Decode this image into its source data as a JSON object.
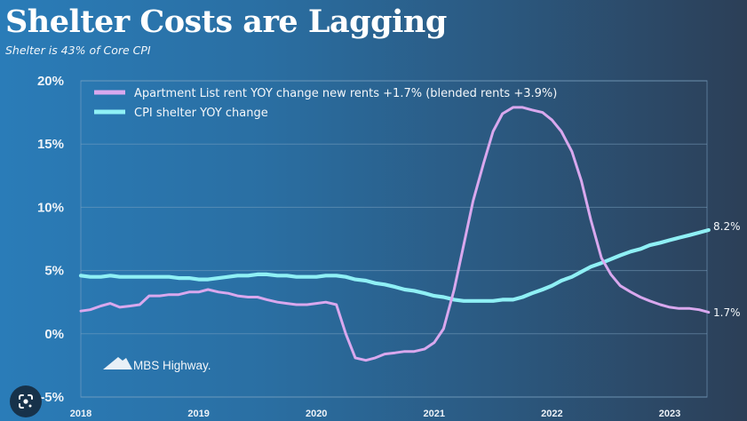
{
  "header": {
    "title": "Shelter Costs are Lagging",
    "subtitle": "Shelter is 43% of Core CPI"
  },
  "logo": {
    "text": "MBS Highway.",
    "icon": "mountain-logo-icon"
  },
  "overlay": {
    "icon": "google-lens-icon"
  },
  "colors": {
    "rent": "#d9a8ee",
    "cpi": "#8ff0f5",
    "grid": "#7fa6c4",
    "text": "#eef3f8"
  },
  "chart_data": {
    "type": "line",
    "title": "Shelter Costs are Lagging",
    "subtitle": "Shelter is 43% of Core CPI",
    "xlabel": "",
    "ylabel": "",
    "xlim": [
      2018,
      2023.33
    ],
    "ylim": [
      -5,
      20
    ],
    "grid": true,
    "legend_position": "top-left",
    "y_ticks": [
      {
        "value": 20,
        "label": "20%"
      },
      {
        "value": 15,
        "label": "15%"
      },
      {
        "value": 10,
        "label": "10%"
      },
      {
        "value": 5,
        "label": "5%"
      },
      {
        "value": 0,
        "label": "0%"
      },
      {
        "value": -5,
        "label": "-5%"
      }
    ],
    "x_ticks": [
      {
        "value": 2018,
        "label": "2018"
      },
      {
        "value": 2019,
        "label": "2019"
      },
      {
        "value": 2020,
        "label": "2020"
      },
      {
        "value": 2021,
        "label": "2021"
      },
      {
        "value": 2022,
        "label": "2022"
      },
      {
        "value": 2023,
        "label": "2023"
      }
    ],
    "series": [
      {
        "name": "Apartment List rent YOY change new rents +1.7% (blended rents +3.9%)",
        "color_key": "rent",
        "end_label": "1.7%",
        "x": [
          2018.0,
          2018.08,
          2018.17,
          2018.25,
          2018.33,
          2018.42,
          2018.5,
          2018.58,
          2018.67,
          2018.75,
          2018.83,
          2018.92,
          2019.0,
          2019.08,
          2019.17,
          2019.25,
          2019.33,
          2019.42,
          2019.5,
          2019.58,
          2019.67,
          2019.75,
          2019.83,
          2019.92,
          2020.0,
          2020.08,
          2020.17,
          2020.25,
          2020.33,
          2020.42,
          2020.5,
          2020.58,
          2020.67,
          2020.75,
          2020.83,
          2020.92,
          2021.0,
          2021.08,
          2021.17,
          2021.25,
          2021.33,
          2021.42,
          2021.5,
          2021.58,
          2021.67,
          2021.75,
          2021.83,
          2021.92,
          2022.0,
          2022.08,
          2022.17,
          2022.25,
          2022.33,
          2022.42,
          2022.5,
          2022.58,
          2022.67,
          2022.75,
          2022.83,
          2022.92,
          2023.0,
          2023.08,
          2023.17,
          2023.25,
          2023.33
        ],
        "y": [
          1.8,
          1.9,
          2.2,
          2.4,
          2.1,
          2.2,
          2.3,
          3.0,
          3.0,
          3.1,
          3.1,
          3.3,
          3.3,
          3.5,
          3.3,
          3.2,
          3.0,
          2.9,
          2.9,
          2.7,
          2.5,
          2.4,
          2.3,
          2.3,
          2.4,
          2.5,
          2.3,
          0.0,
          -1.9,
          -2.1,
          -1.9,
          -1.6,
          -1.5,
          -1.4,
          -1.4,
          -1.2,
          -0.7,
          0.4,
          3.5,
          7.0,
          10.5,
          13.5,
          16.0,
          17.4,
          17.9,
          17.9,
          17.7,
          17.5,
          16.9,
          16.0,
          14.4,
          12.1,
          9.0,
          6.0,
          4.7,
          3.8,
          3.3,
          2.9,
          2.6,
          2.3,
          2.1,
          2.0,
          2.0,
          1.9,
          1.7
        ]
      },
      {
        "name": "CPI shelter YOY change",
        "color_key": "cpi",
        "end_label": "8.2%",
        "x": [
          2018.0,
          2018.08,
          2018.17,
          2018.25,
          2018.33,
          2018.42,
          2018.5,
          2018.58,
          2018.67,
          2018.75,
          2018.83,
          2018.92,
          2019.0,
          2019.08,
          2019.17,
          2019.25,
          2019.33,
          2019.42,
          2019.5,
          2019.58,
          2019.67,
          2019.75,
          2019.83,
          2019.92,
          2020.0,
          2020.08,
          2020.17,
          2020.25,
          2020.33,
          2020.42,
          2020.5,
          2020.58,
          2020.67,
          2020.75,
          2020.83,
          2020.92,
          2021.0,
          2021.08,
          2021.17,
          2021.25,
          2021.33,
          2021.42,
          2021.5,
          2021.58,
          2021.67,
          2021.75,
          2021.83,
          2021.92,
          2022.0,
          2022.08,
          2022.17,
          2022.25,
          2022.33,
          2022.42,
          2022.5,
          2022.58,
          2022.67,
          2022.75,
          2022.83,
          2022.92,
          2023.0,
          2023.08,
          2023.17,
          2023.25,
          2023.33
        ],
        "y": [
          4.6,
          4.5,
          4.5,
          4.6,
          4.5,
          4.5,
          4.5,
          4.5,
          4.5,
          4.5,
          4.4,
          4.4,
          4.3,
          4.3,
          4.4,
          4.5,
          4.6,
          4.6,
          4.7,
          4.7,
          4.6,
          4.6,
          4.5,
          4.5,
          4.5,
          4.6,
          4.6,
          4.5,
          4.3,
          4.2,
          4.0,
          3.9,
          3.7,
          3.5,
          3.4,
          3.2,
          3.0,
          2.9,
          2.7,
          2.6,
          2.6,
          2.6,
          2.6,
          2.7,
          2.7,
          2.9,
          3.2,
          3.5,
          3.8,
          4.2,
          4.5,
          4.9,
          5.3,
          5.6,
          5.9,
          6.2,
          6.5,
          6.7,
          7.0,
          7.2,
          7.4,
          7.6,
          7.8,
          8.0,
          8.2
        ]
      }
    ]
  }
}
